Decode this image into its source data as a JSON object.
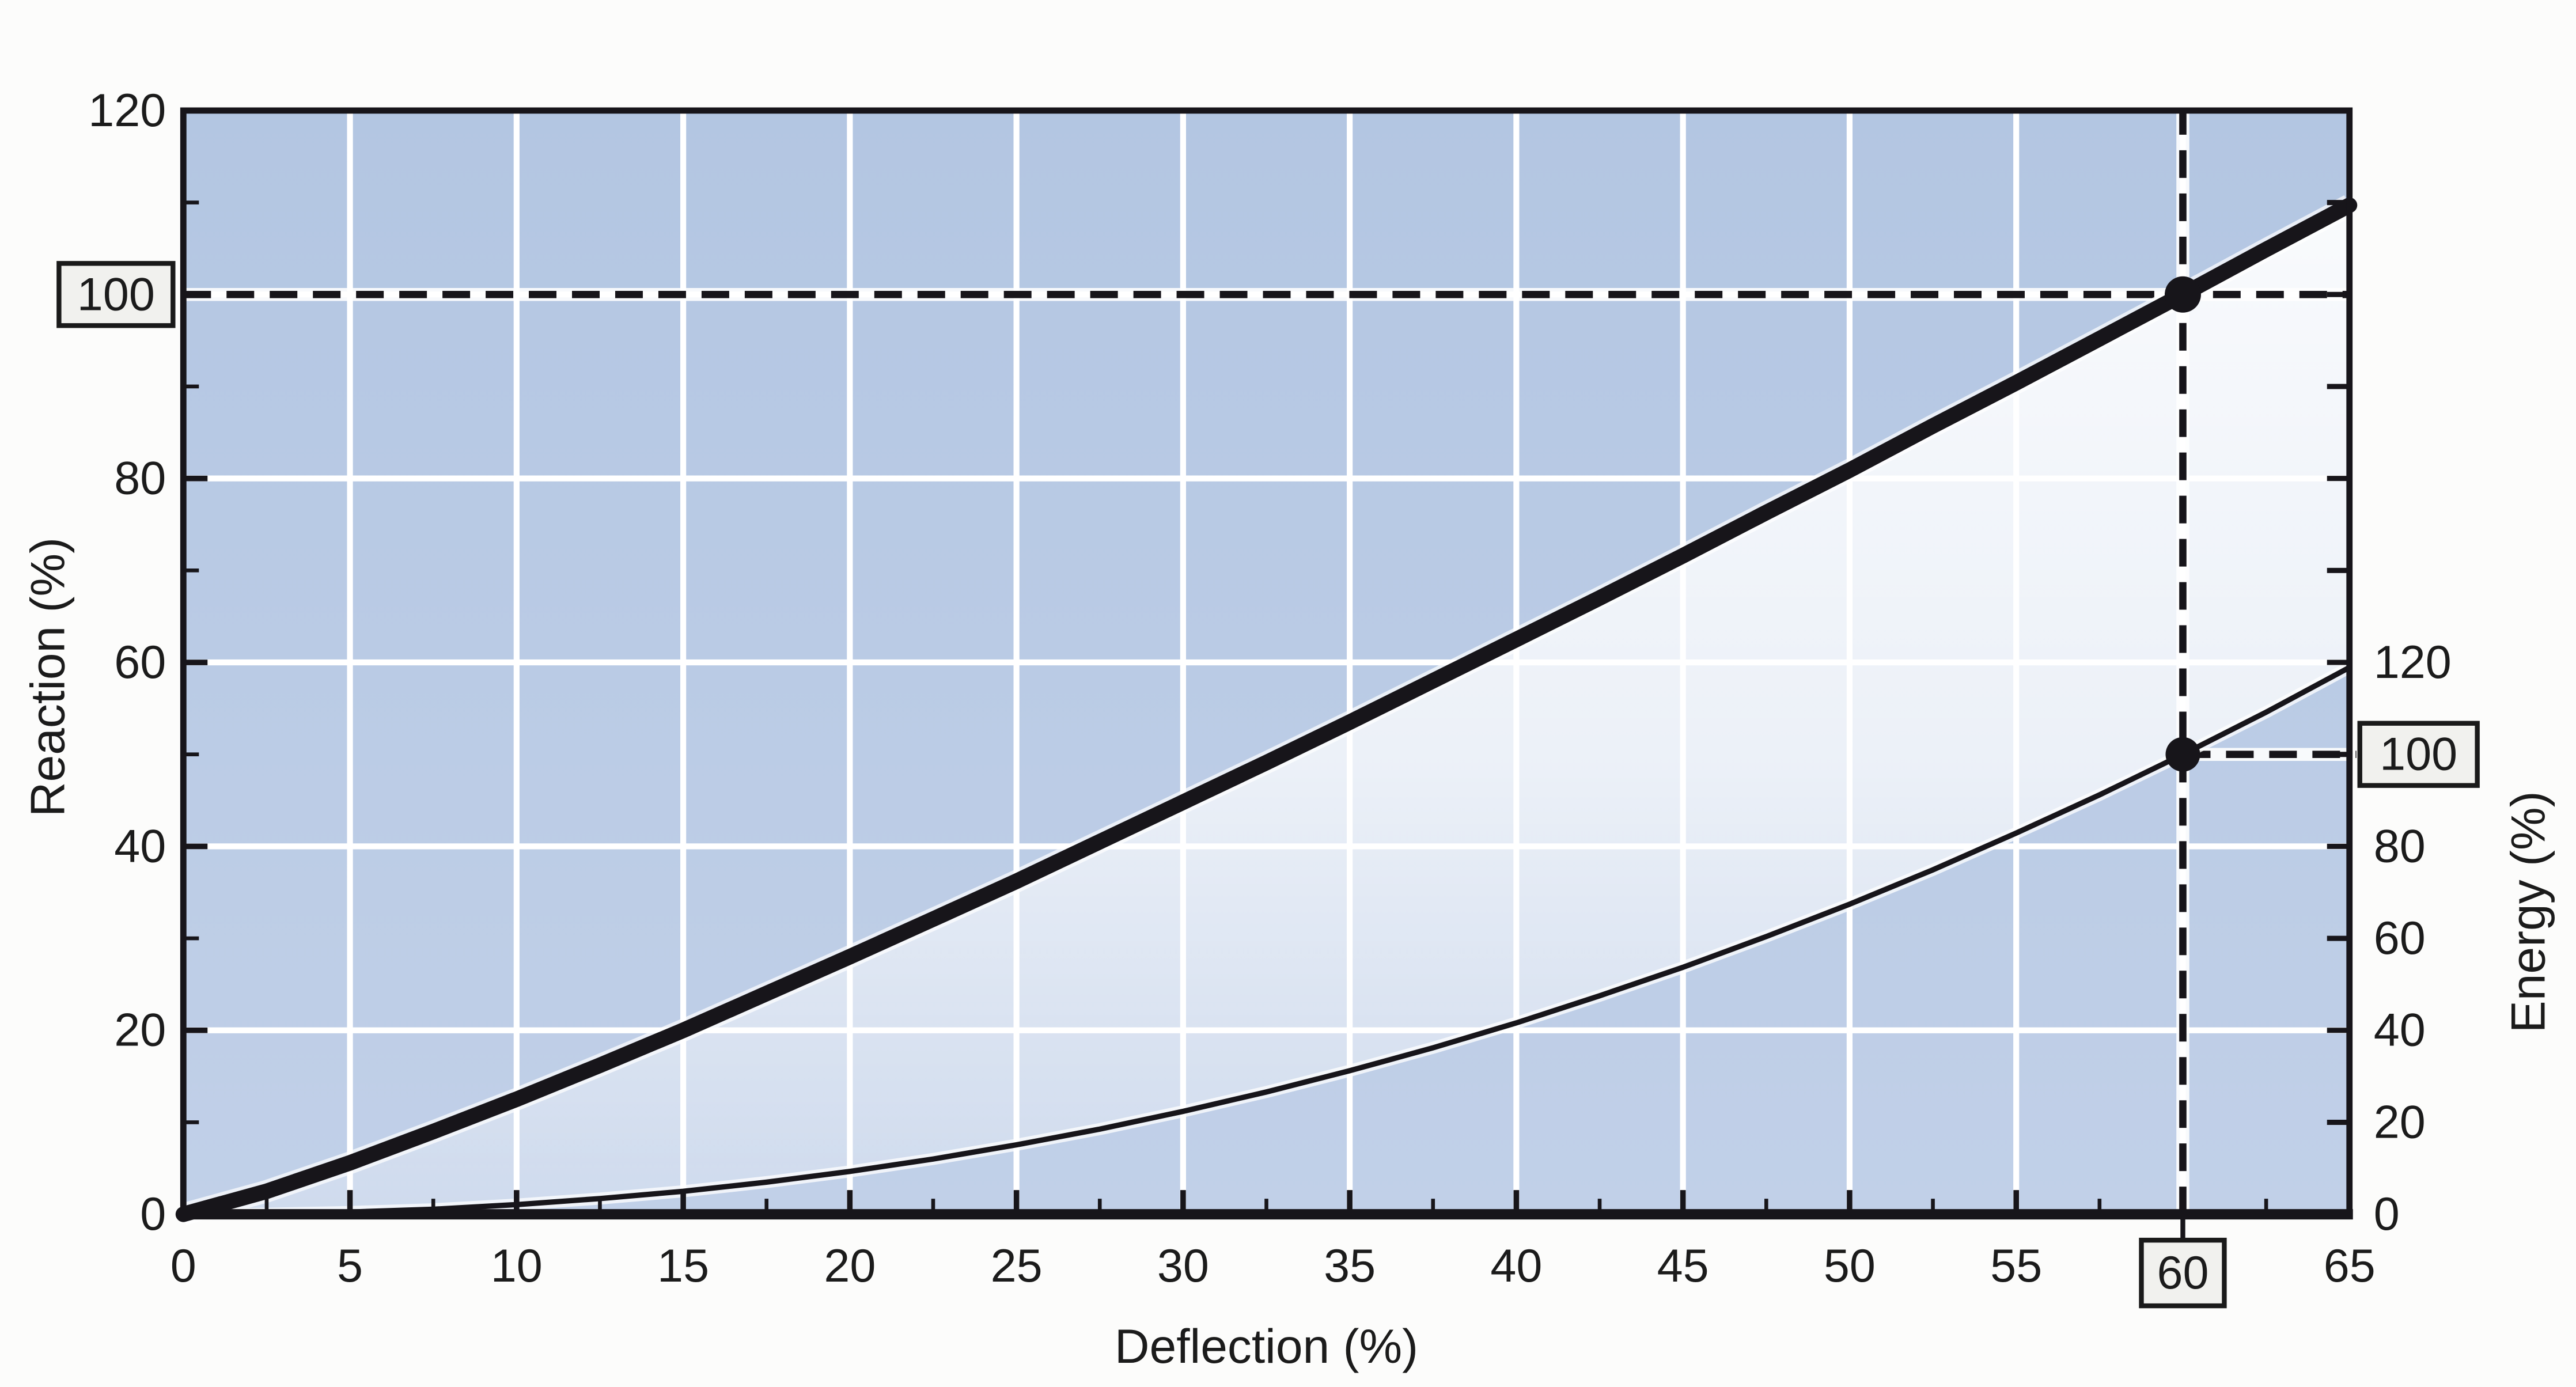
{
  "chart_data": {
    "type": "line",
    "title": "",
    "xlabel": "Deflection (%)",
    "ylabel_left": "Reaction (%)",
    "ylabel_right": "Energy (%)",
    "x_range": [
      0,
      65
    ],
    "x_tick_major_step": 5,
    "x_tick_minor_step": 2.5,
    "x_tick_labels": [
      0,
      5,
      10,
      15,
      20,
      25,
      30,
      35,
      40,
      45,
      50,
      55,
      65
    ],
    "x_boxed_label": 60,
    "left_axis": {
      "range": [
        0,
        120
      ],
      "tick_labels": [
        0,
        20,
        40,
        60,
        80,
        120
      ],
      "boxed_label": 100,
      "minor_step": 10,
      "major_step": 20
    },
    "right_axis": {
      "visible_labels": [
        0,
        20,
        40,
        60,
        80,
        120
      ],
      "boxed_label": 100,
      "label_step": 20,
      "scale_note": "energy value e is drawn at the same height as reaction e/2 (half scale, zero shared with x-axis)"
    },
    "grid": {
      "vertical_every_deflection": 5,
      "horizontal_every_reaction": 20,
      "on": true,
      "color": "#ffffff"
    },
    "series": [
      {
        "name": "Reaction",
        "axis": "left",
        "style": "thick",
        "points": [
          [
            0,
            0
          ],
          [
            2.5,
            2.5
          ],
          [
            5,
            5.6
          ],
          [
            7.5,
            9.0
          ],
          [
            10,
            12.5
          ],
          [
            12.5,
            16.2
          ],
          [
            15,
            20.0
          ],
          [
            17.5,
            24.0
          ],
          [
            20,
            28.0
          ],
          [
            22.5,
            32.1
          ],
          [
            25,
            36.2
          ],
          [
            27.5,
            40.5
          ],
          [
            30,
            44.8
          ],
          [
            32.5,
            49.1
          ],
          [
            35,
            53.5
          ],
          [
            37.5,
            58.0
          ],
          [
            40,
            62.5
          ],
          [
            42.5,
            67.0
          ],
          [
            45,
            71.6
          ],
          [
            47.5,
            76.3
          ],
          [
            50,
            80.9
          ],
          [
            52.5,
            85.7
          ],
          [
            55,
            90.4
          ],
          [
            57.5,
            95.2
          ],
          [
            60,
            100
          ],
          [
            62.5,
            104.9
          ],
          [
            65,
            109.7
          ]
        ]
      },
      {
        "name": "Energy",
        "axis": "right",
        "style": "thin",
        "points": [
          [
            0,
            0
          ],
          [
            2.5,
            0.1
          ],
          [
            5,
            0.5
          ],
          [
            7.5,
            1.1
          ],
          [
            10,
            2.1
          ],
          [
            12.5,
            3.4
          ],
          [
            15,
            5.0
          ],
          [
            17.5,
            7.0
          ],
          [
            20,
            9.3
          ],
          [
            22.5,
            12.0
          ],
          [
            25,
            15.1
          ],
          [
            27.5,
            18.5
          ],
          [
            30,
            22.4
          ],
          [
            32.5,
            26.6
          ],
          [
            35,
            31.2
          ],
          [
            37.5,
            36.2
          ],
          [
            40,
            41.6
          ],
          [
            42.5,
            47.5
          ],
          [
            45,
            53.7
          ],
          [
            47.5,
            60.4
          ],
          [
            50,
            67.4
          ],
          [
            52.5,
            74.9
          ],
          [
            55,
            82.9
          ],
          [
            57.5,
            91.2
          ],
          [
            60,
            100
          ],
          [
            62.5,
            109.2
          ],
          [
            65,
            118.9
          ]
        ]
      }
    ],
    "guides": {
      "style": "dashed",
      "deflection": 60,
      "reaction_value": 100,
      "energy_value": 100,
      "boxed_labels": [
        {
          "axis": "left",
          "value": 100
        },
        {
          "axis": "x",
          "value": 60
        },
        {
          "axis": "right",
          "value": 100
        }
      ],
      "markers": [
        {
          "series": "Reaction",
          "x": 60,
          "value": 100
        },
        {
          "series": "Energy",
          "x": 60,
          "value": 100
        }
      ]
    },
    "colors": {
      "plot_bg_top": "#b4c7e2",
      "plot_bg_bottom": "#c1d0e8",
      "grid": "#ffffff",
      "line": "#17151a",
      "text": "#1b1b1b",
      "label_box_bg": "#f1f1ee",
      "label_box_border": "#1a1a1a",
      "page_bg": "#fcfcfb"
    }
  }
}
